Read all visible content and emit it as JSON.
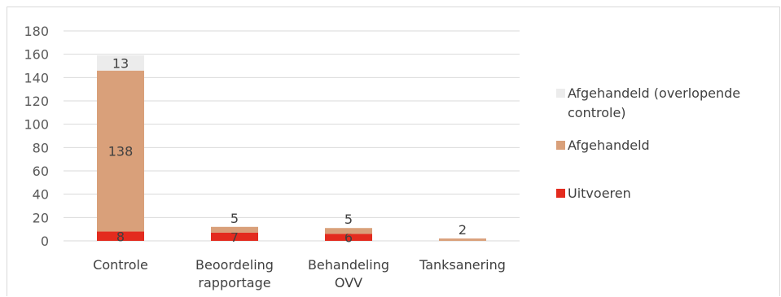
{
  "chart_data": {
    "type": "bar",
    "stacked": true,
    "categories": [
      [
        "Controle"
      ],
      [
        "Beoordeling",
        "rapportage"
      ],
      [
        "Behandeling",
        "OVV"
      ],
      [
        "Tanksanering"
      ]
    ],
    "series": [
      {
        "name": "Uitvoeren",
        "color": "#e32b1e",
        "values": [
          8,
          7,
          6,
          0
        ],
        "labels": [
          "8",
          "7",
          "6",
          ""
        ]
      },
      {
        "name": "Afgehandeld",
        "color": "#d9a07a",
        "values": [
          138,
          5,
          5,
          2
        ],
        "labels": [
          "138",
          "5",
          "5",
          "2"
        ]
      },
      {
        "name": "Afgehandeld (overlopende controle)",
        "legend_lines": [
          "Afgehandeld (overlopende",
          "controle)"
        ],
        "color": "#ececec",
        "values": [
          13,
          0,
          0,
          0
        ],
        "labels": [
          "13",
          "",
          "",
          ""
        ]
      }
    ],
    "ylim": [
      0,
      180
    ],
    "yticks": [
      0,
      20,
      40,
      60,
      80,
      100,
      120,
      140,
      160,
      180
    ],
    "grid": true,
    "legend_position": "right"
  }
}
